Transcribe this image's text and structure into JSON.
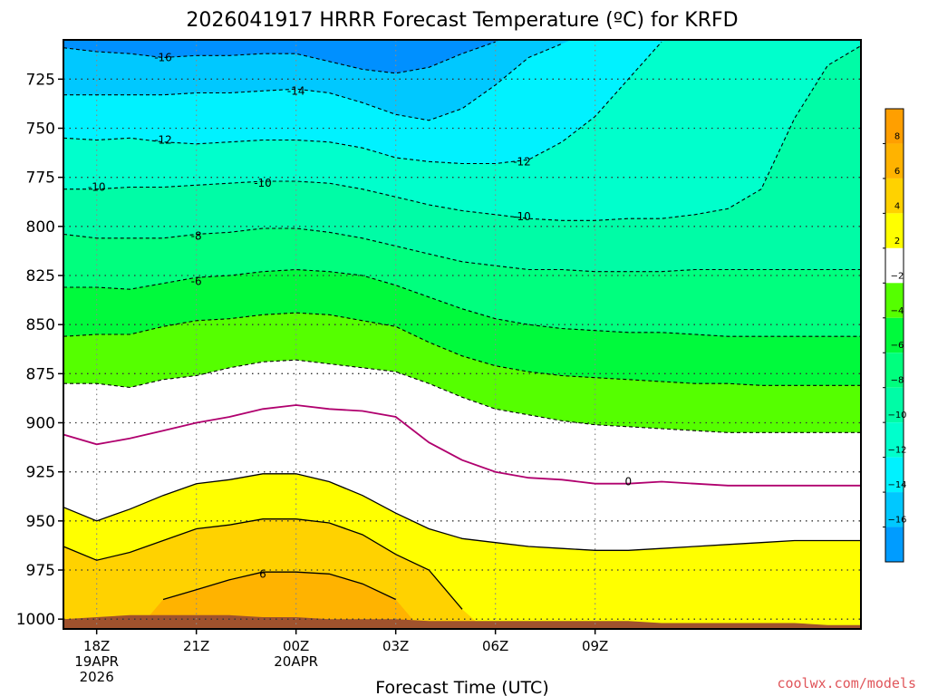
{
  "chart_data": {
    "type": "heatmap",
    "title": "2026041917 HRRR Forecast Temperature (ºC) for KRFD",
    "xlabel": "Forecast Time (UTC)",
    "ylabel": "",
    "y_axis": "pressure (hPa), inverted",
    "ylim": [
      1005,
      705
    ],
    "xlim": [
      -1,
      23
    ],
    "y_ticks": [
      "725",
      "750",
      "775",
      "800",
      "825",
      "850",
      "875",
      "900",
      "925",
      "950",
      "975",
      "1000"
    ],
    "x_ticks": [
      {
        "x": 0,
        "label": "18Z",
        "sub1": "19APR",
        "sub2": "2026"
      },
      {
        "x": 3,
        "label": "21Z",
        "sub1": "",
        "sub2": ""
      },
      {
        "x": 6,
        "label": "00Z",
        "sub1": "20APR",
        "sub2": ""
      },
      {
        "x": 9,
        "label": "03Z",
        "sub1": "",
        "sub2": ""
      },
      {
        "x": 12,
        "label": "06Z",
        "sub1": "",
        "sub2": ""
      },
      {
        "x": 15,
        "label": "09Z",
        "sub1": "",
        "sub2": ""
      }
    ],
    "grid": true,
    "x": [
      -1,
      0,
      1,
      2,
      3,
      4,
      5,
      6,
      7,
      8,
      9,
      10,
      11,
      12,
      13,
      14,
      15,
      16,
      17,
      18,
      19,
      20,
      21,
      22,
      23
    ],
    "isotherms": [
      {
        "value": 6,
        "p": [
          null,
          null,
          null,
          990,
          985,
          980,
          976,
          976,
          977,
          982,
          990,
          null,
          null,
          null,
          null,
          null,
          null,
          null,
          null,
          null,
          null,
          null,
          null,
          null,
          null
        ]
      },
      {
        "value": 4,
        "p": [
          963,
          970,
          966,
          960,
          954,
          952,
          949,
          949,
          951,
          957,
          967,
          975,
          995,
          null,
          null,
          null,
          null,
          null,
          null,
          null,
          null,
          null,
          null,
          null,
          null
        ]
      },
      {
        "value": 2,
        "p": [
          943,
          950,
          944,
          937,
          931,
          929,
          926,
          926,
          930,
          937,
          946,
          954,
          959,
          961,
          963,
          964,
          965,
          965,
          964,
          963,
          962,
          961,
          960,
          960,
          960
        ]
      },
      {
        "value": 0,
        "p": [
          906,
          911,
          908,
          904,
          900,
          897,
          893,
          891,
          893,
          894,
          897,
          910,
          919,
          925,
          928,
          929,
          931,
          931,
          930,
          931,
          932,
          932,
          932,
          932,
          932
        ]
      },
      {
        "value": -2,
        "p": [
          880,
          880,
          882,
          878,
          876,
          872,
          869,
          868,
          870,
          872,
          874,
          880,
          887,
          893,
          896,
          899,
          901,
          902,
          903,
          904,
          905,
          905,
          905,
          905,
          905
        ]
      },
      {
        "value": -4,
        "p": [
          856,
          855,
          855,
          851,
          848,
          847,
          845,
          844,
          845,
          848,
          851,
          859,
          866,
          871,
          874,
          876,
          877,
          878,
          879,
          880,
          880,
          881,
          881,
          881,
          881
        ]
      },
      {
        "value": -6,
        "p": [
          831,
          831,
          832,
          829,
          826,
          825,
          823,
          822,
          823,
          825,
          830,
          836,
          842,
          847,
          850,
          852,
          853,
          854,
          854,
          855,
          856,
          856,
          856,
          856,
          856
        ]
      },
      {
        "value": -8,
        "p": [
          804,
          806,
          806,
          806,
          804,
          803,
          801,
          801,
          803,
          806,
          810,
          814,
          818,
          820,
          822,
          822,
          823,
          823,
          823,
          822,
          822,
          822,
          822,
          822,
          822
        ]
      },
      {
        "value": -10,
        "p": [
          781,
          781,
          780,
          780,
          779,
          778,
          777,
          777,
          778,
          781,
          785,
          789,
          792,
          794,
          796,
          797,
          797,
          796,
          796,
          794,
          791,
          781,
          745,
          718,
          708
        ]
      },
      {
        "value": -12,
        "p": [
          755,
          756,
          755,
          757,
          758,
          757,
          756,
          756,
          757,
          760,
          765,
          767,
          768,
          768,
          766,
          757,
          744,
          725,
          706,
          null,
          null,
          null,
          null,
          null,
          null
        ]
      },
      {
        "value": -14,
        "p": [
          733,
          733,
          733,
          733,
          732,
          732,
          731,
          730,
          732,
          737,
          743,
          746,
          740,
          728,
          714,
          707,
          null,
          null,
          null,
          null,
          null,
          null,
          null,
          null,
          null
        ]
      },
      {
        "value": -16,
        "p": [
          709,
          711,
          712,
          714,
          713,
          713,
          712,
          712,
          716,
          720,
          722,
          719,
          712,
          706,
          null,
          null,
          null,
          null,
          null,
          null,
          null,
          null,
          null,
          null,
          null
        ]
      }
    ],
    "surface_p": [
      1000,
      999,
      998,
      998,
      998,
      998,
      999,
      999,
      1000,
      1000,
      1000,
      1001,
      1001,
      1001,
      1001,
      1001,
      1001,
      1001,
      1002,
      1002,
      1002,
      1002,
      1002,
      1003,
      1003
    ],
    "colorbar": {
      "labels": [
        "8",
        "6",
        "4",
        "2",
        "−2",
        "−4",
        "−6",
        "−8",
        "−10",
        "−12",
        "−14",
        "−16"
      ],
      "bands": [
        {
          "lo": 8,
          "hi": 10,
          "color": "#ff9f00"
        },
        {
          "lo": 6,
          "hi": 8,
          "color": "#ffb300"
        },
        {
          "lo": 4,
          "hi": 6,
          "color": "#ffd200"
        },
        {
          "lo": 2,
          "hi": 4,
          "color": "#ffff00"
        },
        {
          "lo": -2,
          "hi": 2,
          "color": "#ffffff"
        },
        {
          "lo": -4,
          "hi": -2,
          "color": "#55ff00"
        },
        {
          "lo": -6,
          "hi": -4,
          "color": "#00fa3c"
        },
        {
          "lo": -8,
          "hi": -6,
          "color": "#00ff7e"
        },
        {
          "lo": -10,
          "hi": -8,
          "color": "#00fca6"
        },
        {
          "lo": -12,
          "hi": -10,
          "color": "#00ffcc"
        },
        {
          "lo": -14,
          "hi": -12,
          "color": "#00f2ff"
        },
        {
          "lo": -16,
          "hi": -14,
          "color": "#00c8ff"
        },
        {
          "lo": -18,
          "hi": -16,
          "color": "#009cff"
        }
      ]
    },
    "colors": {
      "frozen_line": "#b0006e",
      "surface": "#a0522d",
      "bg_below_minus16": "#0090ff"
    },
    "contour_labels": [
      {
        "value": "-16",
        "x": 2.0,
        "p": 714
      },
      {
        "value": "-14",
        "x": 6.0,
        "p": 731
      },
      {
        "value": "-12",
        "x": 2.0,
        "p": 756
      },
      {
        "value": "-12",
        "x": 12.8,
        "p": 767
      },
      {
        "value": "-10",
        "x": 0.0,
        "p": 780
      },
      {
        "value": "-10",
        "x": 5.0,
        "p": 778
      },
      {
        "value": "-10",
        "x": 12.8,
        "p": 795
      },
      {
        "value": "-8",
        "x": 3.0,
        "p": 805
      },
      {
        "value": "-6",
        "x": 3.0,
        "p": 828
      },
      {
        "value": "6",
        "x": 5.0,
        "p": 977
      },
      {
        "value": "0",
        "x": 16.0,
        "p": 930
      }
    ]
  },
  "credit": "coolwx.com/models"
}
